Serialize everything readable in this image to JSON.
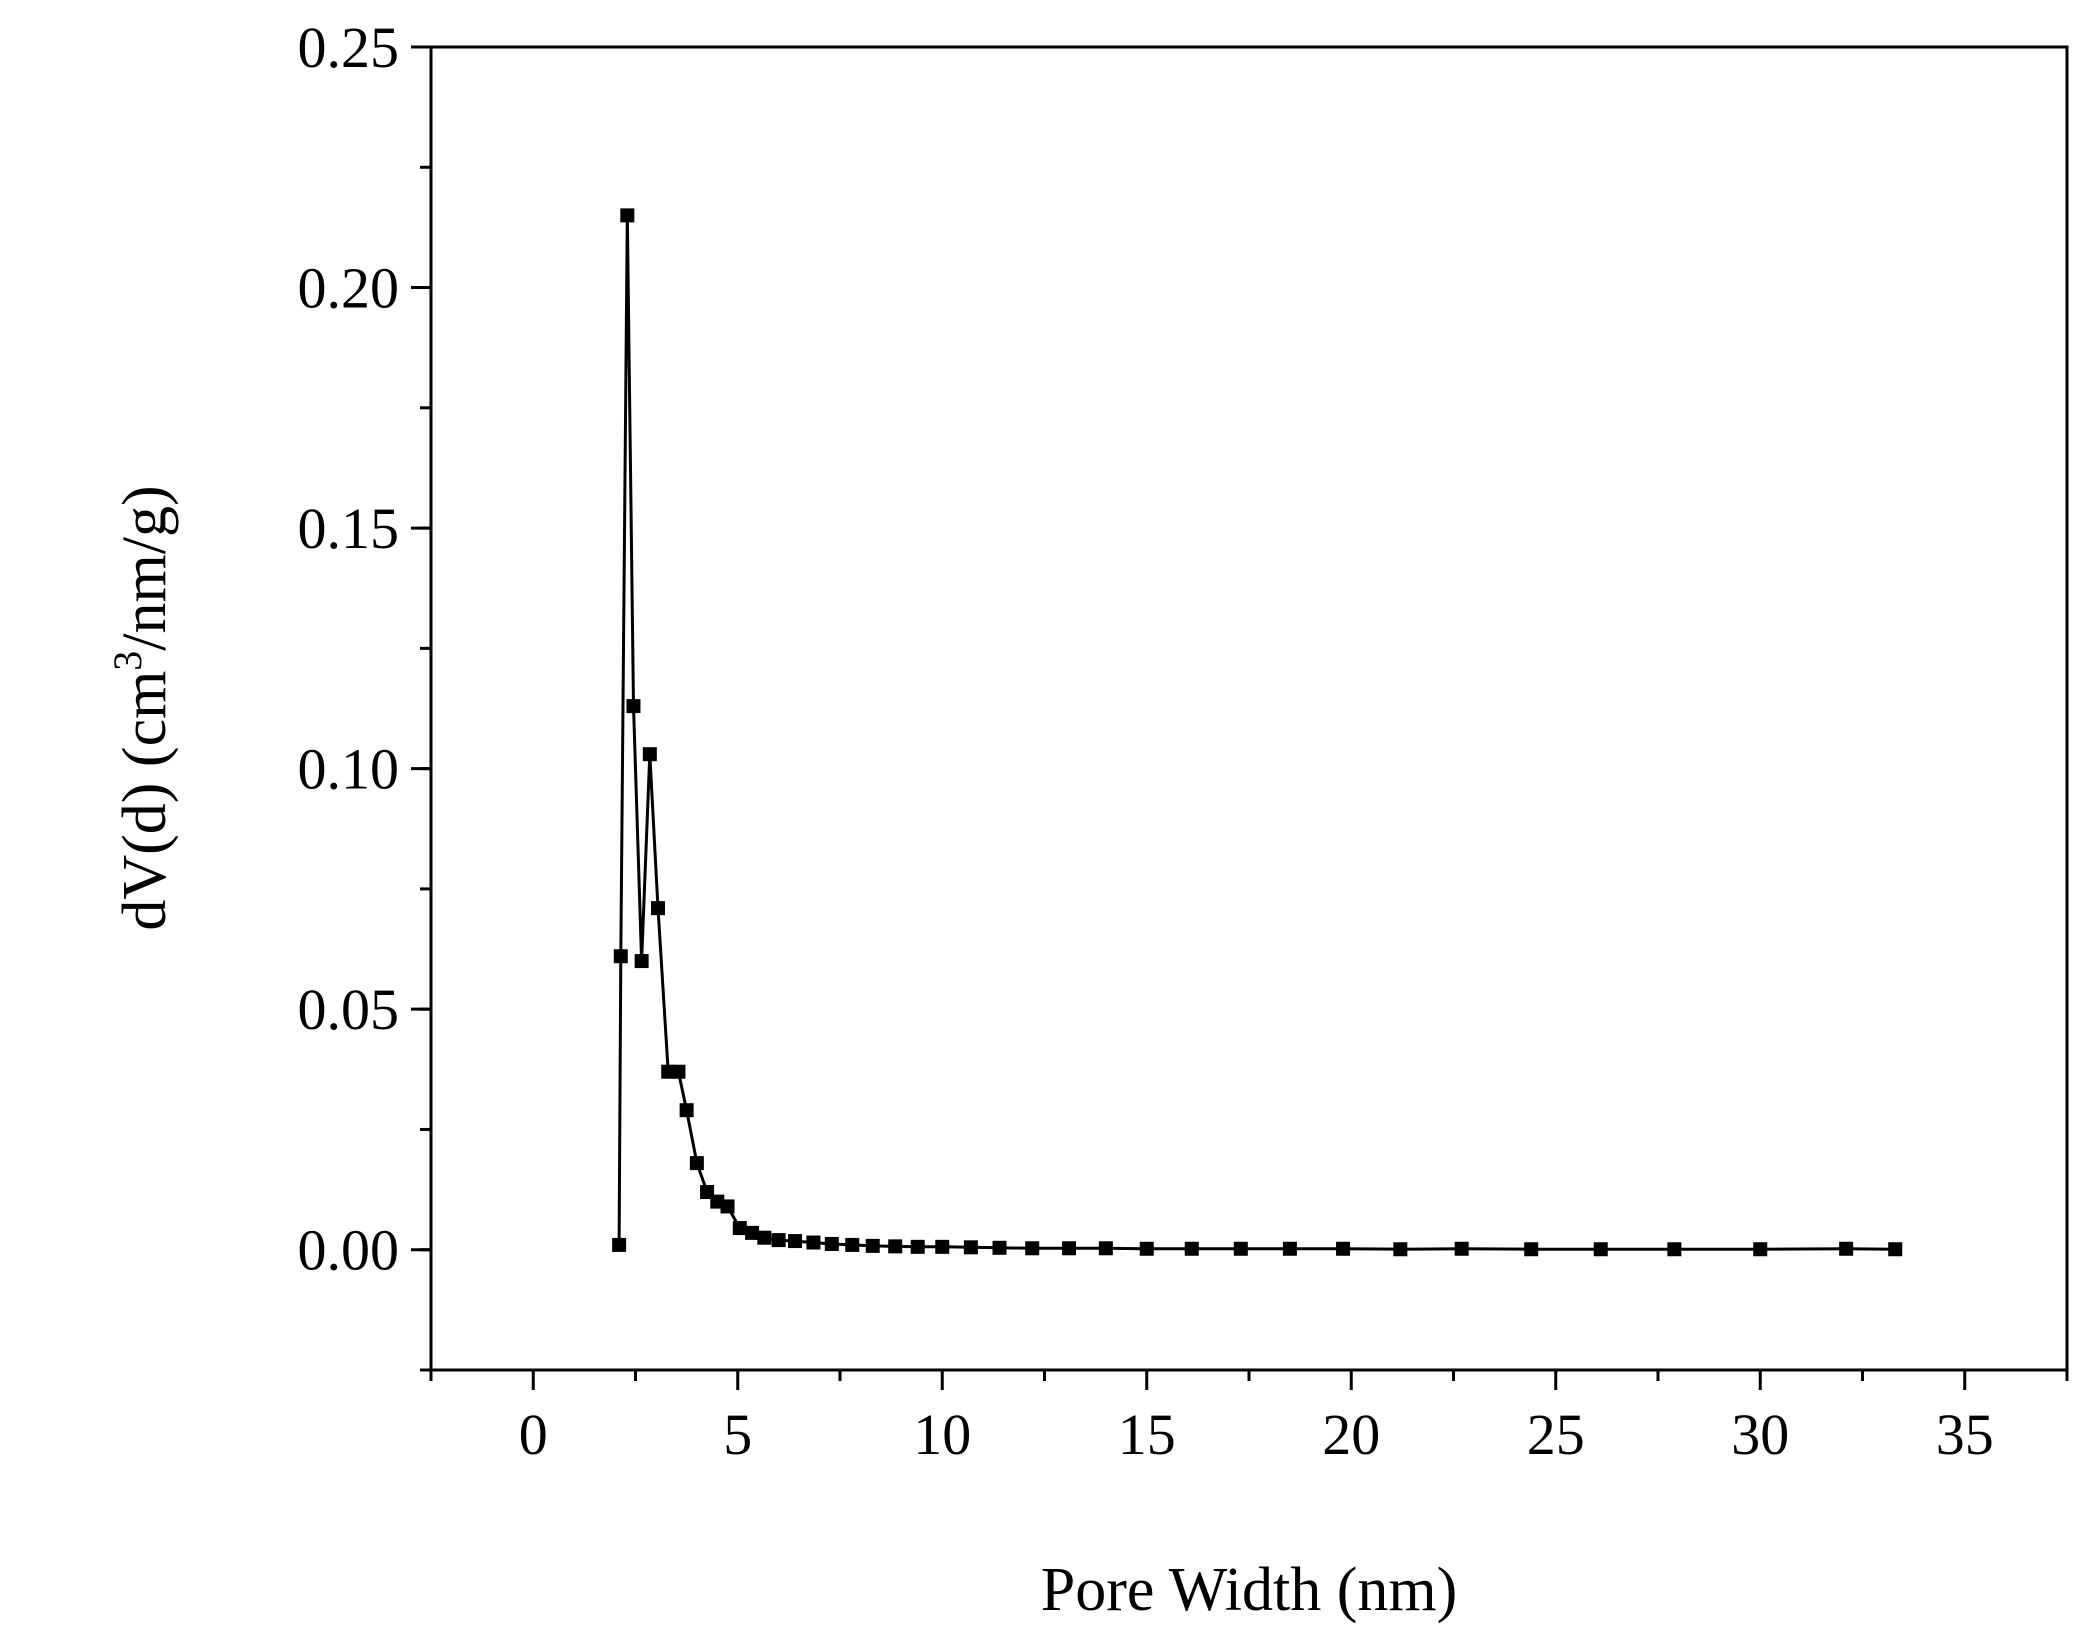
{
  "chart_data": {
    "type": "line",
    "title": "",
    "xlabel": "Pore Width (nm)",
    "ylabel_main": "dV(d) (cm",
    "ylabel_sup": "3",
    "ylabel_tail": "/nm/g)",
    "xlim": [
      -2.5,
      37.5
    ],
    "ylim": [
      -0.025,
      0.25
    ],
    "xticks": [
      0,
      5,
      10,
      15,
      20,
      25,
      30,
      35
    ],
    "xtick_labels": [
      "0",
      "5",
      "10",
      "15",
      "20",
      "25",
      "30",
      "35"
    ],
    "yticks": [
      0.0,
      0.05,
      0.1,
      0.15,
      0.2,
      0.25
    ],
    "ytick_labels": [
      "0.00",
      "0.05",
      "0.10",
      "0.15",
      "0.20",
      "0.25"
    ],
    "grid": false,
    "marker": "square",
    "series": [
      {
        "color": "#000000",
        "x": [
          2.1,
          2.14,
          2.3,
          2.45,
          2.65,
          2.85,
          3.05,
          3.3,
          3.55,
          3.75,
          4.0,
          4.25,
          4.5,
          4.75,
          5.05,
          5.35,
          5.65,
          6.0,
          6.4,
          6.85,
          7.3,
          7.8,
          8.3,
          8.85,
          9.4,
          10.0,
          10.7,
          11.4,
          12.2,
          13.1,
          14.0,
          15.0,
          16.1,
          17.3,
          18.5,
          19.8,
          21.2,
          22.7,
          24.4,
          26.1,
          27.9,
          30.0,
          32.1,
          33.3
        ],
        "y": [
          0.001,
          0.061,
          0.215,
          0.113,
          0.06,
          0.103,
          0.071,
          0.037,
          0.037,
          0.029,
          0.018,
          0.012,
          0.01,
          0.009,
          0.0045,
          0.0035,
          0.0025,
          0.002,
          0.0018,
          0.0015,
          0.0012,
          0.001,
          0.0008,
          0.0007,
          0.0006,
          0.0006,
          0.0005,
          0.0004,
          0.0003,
          0.0003,
          0.0003,
          0.0002,
          0.0002,
          0.0002,
          0.0002,
          0.0002,
          0.0001,
          0.0002,
          0.0001,
          0.0001,
          0.0001,
          0.0001,
          0.0002,
          0.0001
        ]
      }
    ]
  }
}
